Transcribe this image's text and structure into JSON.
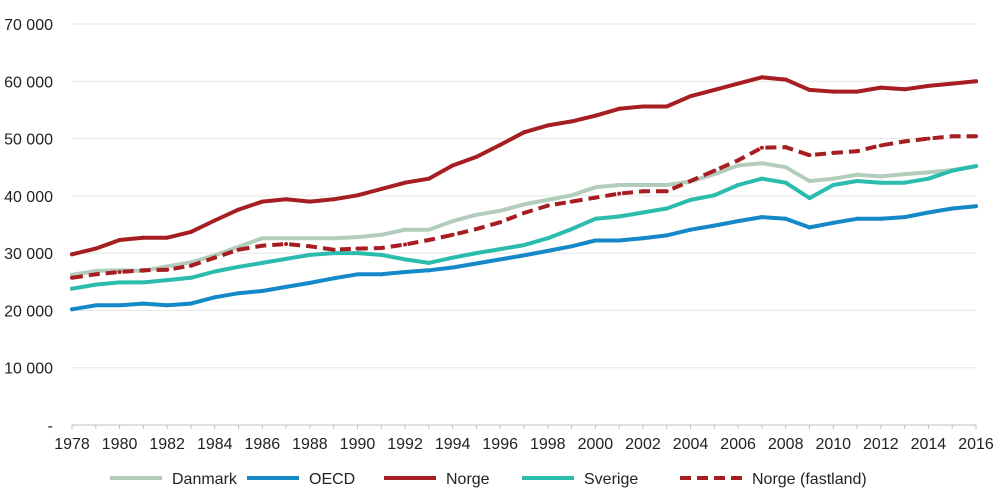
{
  "chart_data": {
    "type": "line",
    "title": "",
    "xlabel": "",
    "ylabel": "",
    "ylim": [
      0,
      70000
    ],
    "y_ticks": [
      {
        "value": 0,
        "label": "-"
      },
      {
        "value": 10000,
        "label": "10 000"
      },
      {
        "value": 20000,
        "label": "20 000"
      },
      {
        "value": 30000,
        "label": "30 000"
      },
      {
        "value": 40000,
        "label": "40 000"
      },
      {
        "value": 50000,
        "label": "50 000"
      },
      {
        "value": 60000,
        "label": "60 000"
      },
      {
        "value": 70000,
        "label": "70 000"
      }
    ],
    "x": [
      1978,
      1979,
      1980,
      1981,
      1982,
      1983,
      1984,
      1985,
      1986,
      1987,
      1988,
      1989,
      1990,
      1991,
      1992,
      1993,
      1994,
      1995,
      1996,
      1997,
      1998,
      1999,
      2000,
      2001,
      2002,
      2003,
      2004,
      2005,
      2006,
      2007,
      2008,
      2009,
      2010,
      2011,
      2012,
      2013,
      2014,
      2015,
      2016
    ],
    "x_tick_labels": [
      "1978",
      "1980",
      "1982",
      "1984",
      "1986",
      "1988",
      "1990",
      "1992",
      "1994",
      "1996",
      "1998",
      "2000",
      "2002",
      "2004",
      "2006",
      "2008",
      "2010",
      "2012",
      "2014",
      "2016"
    ],
    "grid": true,
    "legend_position": "bottom",
    "series": [
      {
        "name": "Danmark",
        "color": "#b3cdbd",
        "dashed": false,
        "values": [
          26200,
          26900,
          27000,
          26900,
          27700,
          28400,
          29600,
          31100,
          32600,
          32600,
          32600,
          32600,
          32800,
          33200,
          34100,
          34100,
          35600,
          36700,
          37400,
          38500,
          39300,
          40100,
          41500,
          41900,
          41900,
          41900,
          42500,
          43800,
          45300,
          45700,
          45000,
          42600,
          43000,
          43700,
          43400,
          43800,
          44100,
          44500,
          45200
        ]
      },
      {
        "name": "OECD",
        "color": "#1589c8",
        "dashed": false,
        "values": [
          20200,
          20900,
          20900,
          21200,
          20900,
          21200,
          22300,
          23000,
          23400,
          24100,
          24800,
          25600,
          26300,
          26300,
          26700,
          27000,
          27500,
          28200,
          28900,
          29600,
          30400,
          31200,
          32200,
          32200,
          32600,
          33100,
          34100,
          34800,
          35600,
          36300,
          36000,
          34500,
          35300,
          36000,
          36000,
          36300,
          37100,
          37800,
          38200
        ]
      },
      {
        "name": "Norge",
        "color": "#a61e22",
        "dashed": false,
        "values": [
          29800,
          30800,
          32300,
          32700,
          32700,
          33700,
          35700,
          37600,
          39000,
          39400,
          39000,
          39400,
          40100,
          41200,
          42300,
          43000,
          45300,
          46800,
          48900,
          51100,
          52300,
          53000,
          54000,
          55200,
          55600,
          55600,
          57400,
          58500,
          59600,
          60700,
          60300,
          58500,
          58200,
          58200,
          58900,
          58600,
          59200,
          59600,
          60000
        ]
      },
      {
        "name": "Sverige",
        "color": "#2bbcae",
        "dashed": false,
        "values": [
          23800,
          24500,
          24900,
          24900,
          25300,
          25700,
          26800,
          27600,
          28300,
          29000,
          29700,
          30000,
          30000,
          29700,
          28900,
          28300,
          29200,
          30000,
          30700,
          31400,
          32600,
          34200,
          36000,
          36400,
          37100,
          37800,
          39300,
          40100,
          41900,
          43000,
          42300,
          39600,
          41900,
          42600,
          42300,
          42300,
          43000,
          44400,
          45200
        ]
      },
      {
        "name": "Norge (fastland)",
        "color": "#a61e22",
        "dashed": true,
        "values": [
          25700,
          26300,
          26700,
          27000,
          27100,
          27800,
          29200,
          30600,
          31300,
          31600,
          31200,
          30600,
          30800,
          30900,
          31500,
          32300,
          33200,
          34200,
          35400,
          37000,
          38300,
          39000,
          39700,
          40400,
          40800,
          40800,
          42600,
          44400,
          46200,
          48400,
          48500,
          47100,
          47500,
          47800,
          48800,
          49500,
          50000,
          50400,
          50400
        ]
      }
    ]
  }
}
